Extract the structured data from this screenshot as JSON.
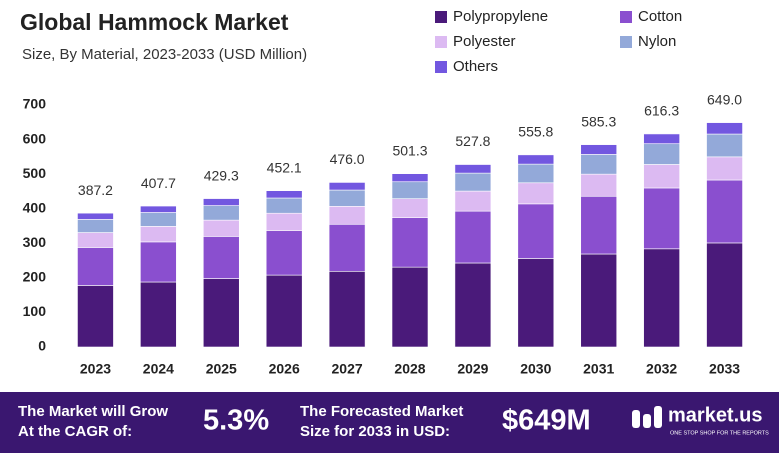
{
  "chart_data": {
    "type": "stacked_bar",
    "title": "Global Hammock Market",
    "subtitle": "Size, By Material, 2023-2033 (USD Million)",
    "categories": [
      "2023",
      "2024",
      "2025",
      "2026",
      "2027",
      "2028",
      "2029",
      "2030",
      "2031",
      "2032",
      "2033"
    ],
    "series": [
      {
        "name": "Polypropylene",
        "color": "#4a1a7a",
        "values": [
          178,
          188,
          198,
          208,
          219,
          231,
          243,
          256,
          269,
          284,
          301
        ]
      },
      {
        "name": "Cotton",
        "color": "#8a4fcf",
        "values": [
          110,
          116,
          122,
          129,
          136,
          143,
          150,
          158,
          167,
          176,
          182
        ]
      },
      {
        "name": "Polyester",
        "color": "#dcbaf2",
        "values": [
          43,
          45,
          47,
          50,
          52,
          55,
          58,
          61,
          64,
          68,
          67
        ]
      },
      {
        "name": "Nylon",
        "color": "#93a9d9",
        "values": [
          38,
          40,
          42,
          44,
          47,
          49,
          52,
          54,
          57,
          60,
          66
        ]
      },
      {
        "name": "Others",
        "color": "#7257e0",
        "values": [
          18.2,
          18.7,
          20.3,
          21.1,
          22,
          23.3,
          24.8,
          26.8,
          28.3,
          28.3,
          33
        ]
      }
    ],
    "totals": [
      387.2,
      407.7,
      429.3,
      452.1,
      476.0,
      501.3,
      527.8,
      555.8,
      585.3,
      616.3,
      649.0
    ],
    "total_labels": [
      "387.2",
      "407.7",
      "429.3",
      "452.1",
      "476.0",
      "501.3",
      "527.8",
      "555.8",
      "585.3",
      "616.3",
      "649.0"
    ],
    "ylim": [
      0,
      700
    ],
    "yticks": [
      0,
      100,
      200,
      300,
      400,
      500,
      600,
      700
    ],
    "grid": false
  },
  "footer": {
    "cagr_label": [
      "The Market will Grow",
      "At the CAGR of:"
    ],
    "cagr_value": "5.3%",
    "forecast_label": [
      "The Forecasted Market",
      "Size for 2033 in USD:"
    ],
    "forecast_value": "$649M",
    "brand": "market.us",
    "tagline": "ONE STOP SHOP FOR THE REPORTS"
  }
}
